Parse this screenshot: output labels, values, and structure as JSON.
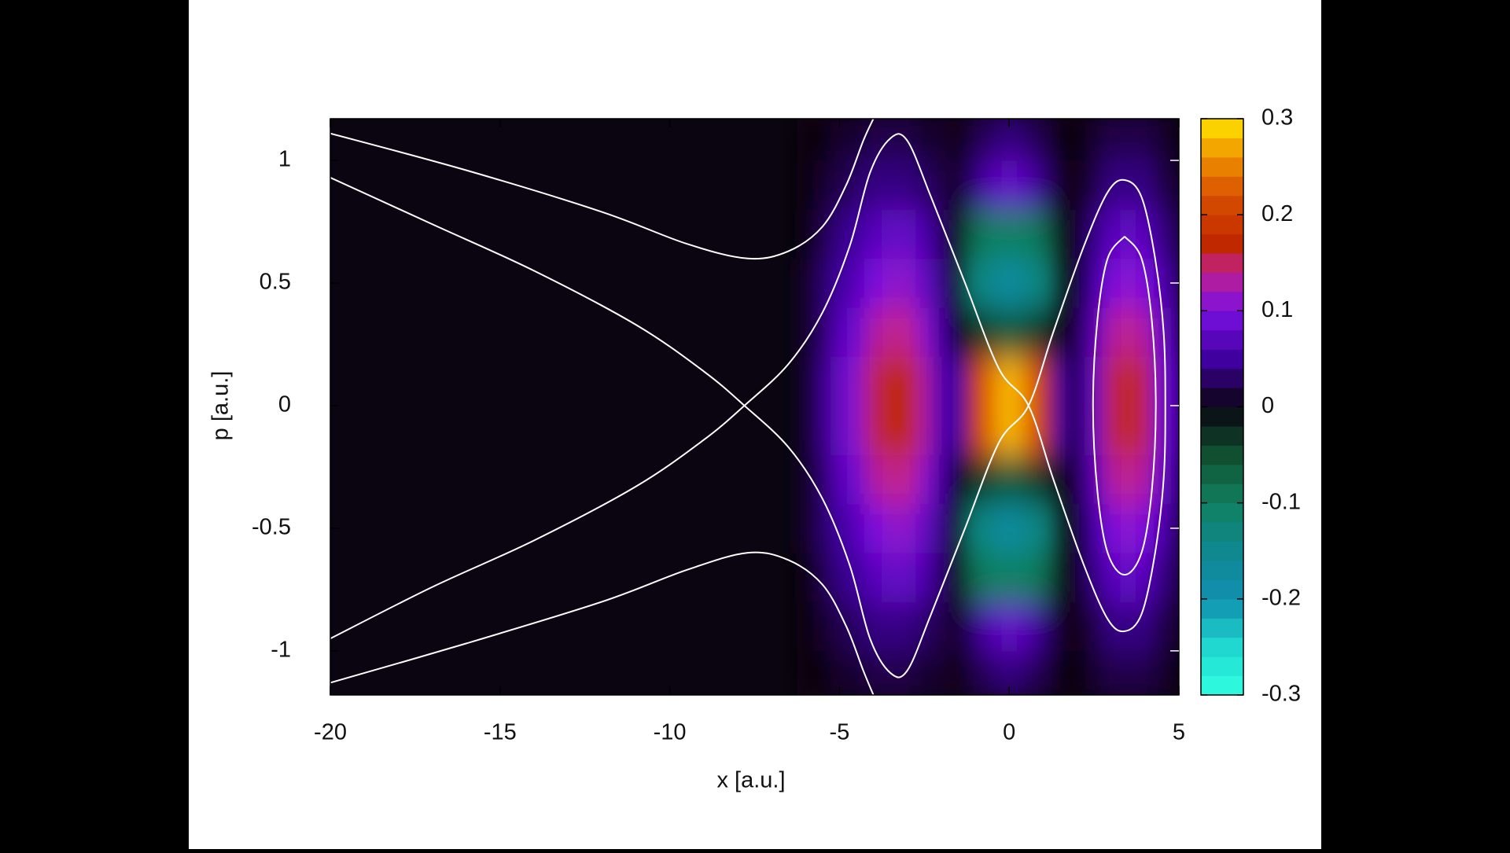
{
  "chart_data": {
    "type": "heatmap",
    "xlabel": "x [a.u.]",
    "ylabel": "p [a.u.]",
    "xlim": [
      -20,
      5
    ],
    "ylim": [
      -1.18,
      1.17
    ],
    "xticks": [
      -20,
      -15,
      -10,
      -5,
      0,
      5
    ],
    "yticks": [
      -1,
      -0.5,
      0,
      0.5,
      1
    ],
    "clim": [
      -0.3,
      0.3
    ],
    "cticks": [
      -0.3,
      -0.2,
      -0.1,
      0,
      0.1,
      0.2,
      0.3
    ],
    "colorscale": [
      [
        -0.3,
        "#30ffe0"
      ],
      [
        -0.25,
        "#20d8d0"
      ],
      [
        -0.2,
        "#1090b0"
      ],
      [
        -0.15,
        "#108890"
      ],
      [
        -0.1,
        "#108060"
      ],
      [
        -0.05,
        "#105030"
      ],
      [
        0,
        "#0a0510"
      ],
      [
        0.05,
        "#4000a0"
      ],
      [
        0.1,
        "#7a10e0"
      ],
      [
        0.14,
        "#c02090"
      ],
      [
        0.17,
        "#c02800"
      ],
      [
        0.22,
        "#d85000"
      ],
      [
        0.26,
        "#f09000"
      ],
      [
        0.3,
        "#ffe800"
      ]
    ],
    "x": [
      -6,
      -5.5,
      -5,
      -4.5,
      -4,
      -3.5,
      -3,
      -2.5,
      -2,
      -1.5,
      -1,
      -0.5,
      0,
      0.5,
      1,
      1.5,
      2,
      2.5,
      3,
      3.5,
      4,
      4.5,
      5
    ],
    "y": [
      -1.1,
      -0.9,
      -0.7,
      -0.5,
      -0.3,
      -0.1,
      0.1,
      0.3,
      0.5,
      0.7,
      0.9,
      1.1
    ],
    "z": [
      [
        0,
        0,
        0.01,
        0.01,
        0.02,
        0.02,
        0.02,
        0.01,
        0.01,
        0,
        0.02,
        0.03,
        0.04,
        0.03,
        0.02,
        0,
        0,
        0.01,
        0.02,
        0.02,
        0.02,
        0.01,
        0
      ],
      [
        0,
        0.01,
        0.02,
        0.03,
        0.04,
        0.04,
        0.04,
        0.03,
        0.02,
        0.01,
        0.04,
        0.07,
        0.08,
        0.07,
        0.04,
        0.01,
        0,
        0.02,
        0.04,
        0.04,
        0.04,
        0.02,
        0.01
      ],
      [
        0,
        0.02,
        0.04,
        0.05,
        0.07,
        0.08,
        0.08,
        0.06,
        0.03,
        -0.01,
        -0.08,
        -0.1,
        -0.1,
        -0.1,
        -0.08,
        -0.01,
        0.01,
        0.04,
        0.07,
        0.08,
        0.07,
        0.04,
        0.02
      ],
      [
        0.01,
        0.03,
        0.05,
        0.07,
        0.1,
        0.11,
        0.11,
        0.08,
        0.04,
        -0.02,
        -0.13,
        -0.15,
        -0.18,
        -0.15,
        -0.13,
        -0.02,
        0.01,
        0.05,
        0.1,
        0.11,
        0.1,
        0.06,
        0.03
      ],
      [
        0.01,
        0.03,
        0.07,
        0.09,
        0.13,
        0.14,
        0.14,
        0.11,
        0.05,
        0,
        -0.03,
        -0.05,
        -0.06,
        -0.05,
        -0.03,
        0,
        0.02,
        0.07,
        0.13,
        0.14,
        0.13,
        0.08,
        0.04
      ],
      [
        0.01,
        0.04,
        0.08,
        0.11,
        0.15,
        0.17,
        0.17,
        0.13,
        0.06,
        0.05,
        0.18,
        0.25,
        0.28,
        0.25,
        0.18,
        0.05,
        0.02,
        0.08,
        0.15,
        0.17,
        0.15,
        0.09,
        0.05
      ],
      [
        0.01,
        0.04,
        0.08,
        0.11,
        0.15,
        0.17,
        0.17,
        0.13,
        0.06,
        0.05,
        0.18,
        0.25,
        0.28,
        0.25,
        0.18,
        0.05,
        0.02,
        0.08,
        0.15,
        0.17,
        0.15,
        0.09,
        0.05
      ],
      [
        0.01,
        0.03,
        0.07,
        0.09,
        0.13,
        0.14,
        0.14,
        0.11,
        0.05,
        0,
        -0.03,
        -0.05,
        -0.06,
        -0.05,
        -0.03,
        0,
        0.02,
        0.07,
        0.13,
        0.14,
        0.13,
        0.08,
        0.04
      ],
      [
        0.01,
        0.03,
        0.05,
        0.07,
        0.1,
        0.11,
        0.11,
        0.08,
        0.04,
        -0.02,
        -0.13,
        -0.15,
        -0.18,
        -0.15,
        -0.13,
        -0.02,
        0.01,
        0.05,
        0.1,
        0.11,
        0.1,
        0.06,
        0.03
      ],
      [
        0,
        0.02,
        0.04,
        0.05,
        0.07,
        0.08,
        0.08,
        0.06,
        0.03,
        -0.01,
        -0.08,
        -0.1,
        -0.1,
        -0.1,
        -0.08,
        -0.01,
        0.01,
        0.04,
        0.07,
        0.08,
        0.07,
        0.04,
        0.02
      ],
      [
        0,
        0.01,
        0.02,
        0.03,
        0.04,
        0.04,
        0.04,
        0.03,
        0.02,
        0.01,
        0.04,
        0.07,
        0.08,
        0.07,
        0.04,
        0.01,
        0,
        0.02,
        0.04,
        0.04,
        0.04,
        0.02,
        0.01
      ],
      [
        0,
        0,
        0.01,
        0.01,
        0.02,
        0.02,
        0.02,
        0.01,
        0.01,
        0,
        0.02,
        0.03,
        0.04,
        0.03,
        0.02,
        0,
        0,
        0.01,
        0.02,
        0.02,
        0.02,
        0.01,
        0
      ]
    ],
    "contour_color": "#ffffff",
    "contours": [
      {
        "x": [
          -20,
          -17,
          -14,
          -11,
          -9,
          -7.8,
          -6.5,
          -5.5,
          -4.7,
          -4.1,
          -3.5,
          -3,
          -2.3,
          -1.3,
          -0.3,
          0.57,
          1.3,
          2.2,
          2.9,
          3.4,
          3.9,
          4.3,
          4.55,
          4.6,
          4.55,
          4.3,
          3.9,
          3.4,
          2.9,
          2.2,
          1.3,
          0.57,
          -0.3,
          -1.3,
          -2.3,
          -3,
          -3.5,
          -4.1,
          -4.7,
          -5.5,
          -6.5,
          -7.8,
          -9,
          -11,
          -14,
          -17,
          -20
        ],
        "y": [
          0.93,
          0.74,
          0.55,
          0.33,
          0.14,
          0,
          -0.17,
          -0.38,
          -0.65,
          -0.95,
          -1.09,
          -1.08,
          -0.85,
          -0.5,
          -0.15,
          0,
          0.3,
          0.65,
          0.87,
          0.92,
          0.85,
          0.6,
          0.3,
          0,
          -0.3,
          -0.6,
          -0.85,
          -0.92,
          -0.87,
          -0.65,
          -0.3,
          0,
          0.15,
          0.5,
          0.85,
          1.08,
          1.09,
          0.95,
          0.65,
          0.38,
          0.17,
          0,
          -0.14,
          -0.33,
          -0.55,
          -0.74,
          -0.95
        ]
      },
      {
        "x": [
          -20,
          -16,
          -12,
          -9.5,
          -7.7,
          -6.5,
          -5.5,
          -4.8,
          -4.3,
          -4.0
        ],
        "y": [
          1.11,
          0.96,
          0.79,
          0.66,
          0.6,
          0.63,
          0.73,
          0.9,
          1.08,
          1.17
        ]
      },
      {
        "x": [
          -20,
          -16,
          -12,
          -9.5,
          -7.7,
          -6.5,
          -5.5,
          -4.8,
          -4.3,
          -4.0
        ],
        "y": [
          -1.13,
          -0.97,
          -0.8,
          -0.67,
          -0.6,
          -0.63,
          -0.73,
          -0.9,
          -1.08,
          -1.18
        ]
      },
      {
        "x": [
          3.4,
          3.9,
          4.2,
          4.32,
          4.2,
          3.9,
          3.4,
          2.9,
          2.6,
          2.47,
          2.6,
          2.9,
          3.4
        ],
        "y": [
          0.69,
          0.6,
          0.35,
          0,
          -0.35,
          -0.6,
          -0.69,
          -0.6,
          -0.35,
          0,
          0.35,
          0.6,
          0.69
        ]
      }
    ]
  }
}
